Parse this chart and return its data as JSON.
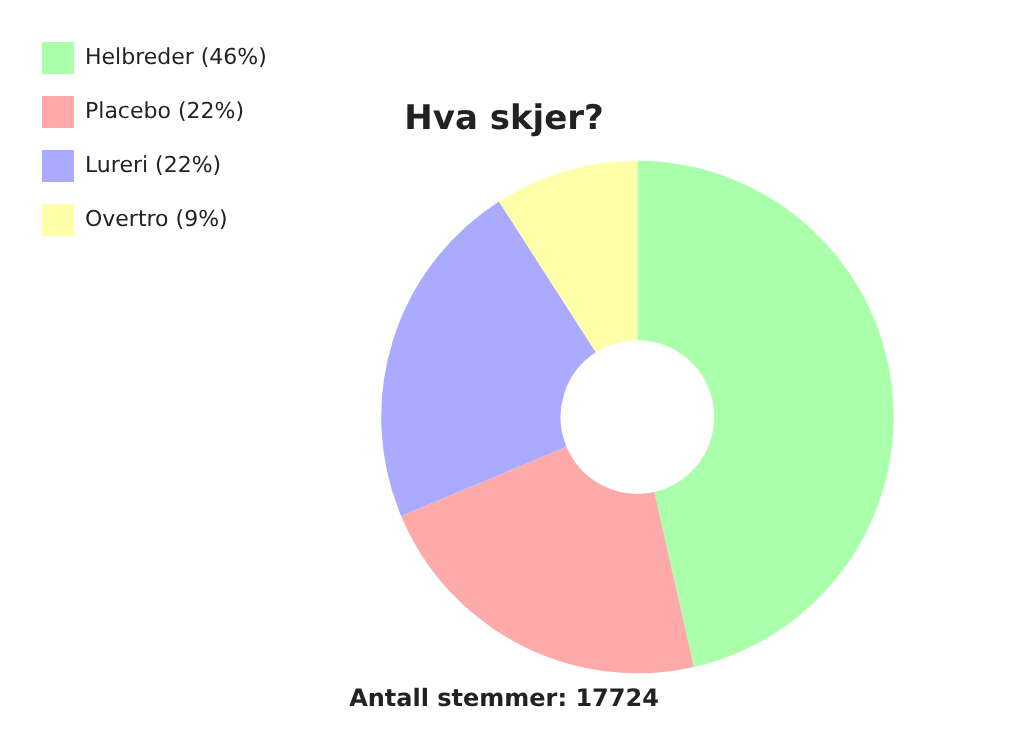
{
  "chart_data": {
    "type": "donut",
    "title": "Hva skjer?",
    "categories": [
      "Helbreder (46%)",
      "Placebo (22%)",
      "Lureri (22%)",
      "Overtro (9%)"
    ],
    "values": [
      46,
      22,
      22,
      9
    ],
    "colors": [
      "#aaffaa",
      "#ffaaaa",
      "#aaaaff",
      "#ffffaa"
    ],
    "legend": "top left",
    "annotations": [
      "Antall stemmer: 17724"
    ]
  }
}
